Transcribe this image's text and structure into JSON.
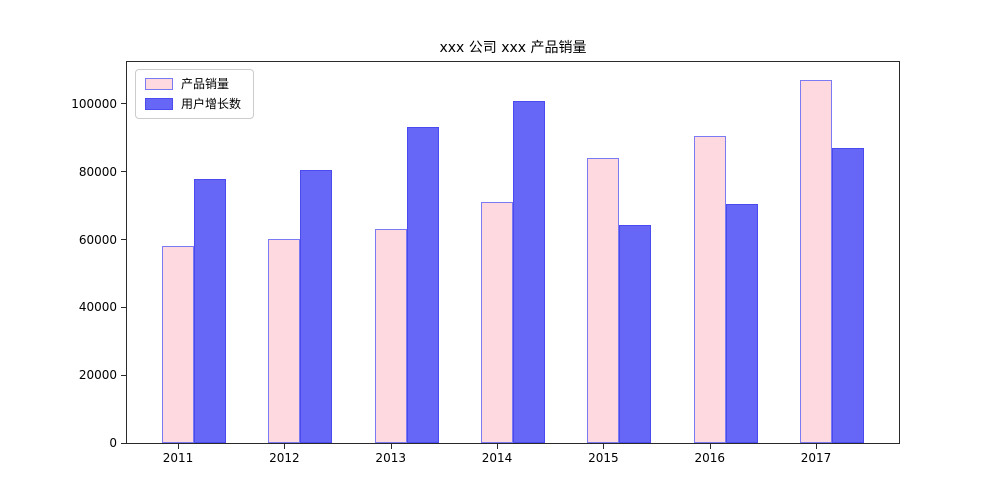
{
  "title": "xxx 公司 xxx 产品销量",
  "colors": {
    "series1_fill": "#ffd9e0",
    "series1_edge": "#7a7af2",
    "series2_fill": "#6666f7",
    "series2_edge": "#4a4aee",
    "spine": "#2a2a2a"
  },
  "legend": {
    "items": [
      "产品销量",
      "用户增长数"
    ]
  },
  "chart_data": {
    "type": "bar",
    "title": "xxx 公司 xxx 产品销量",
    "categories": [
      "2011",
      "2012",
      "2013",
      "2014",
      "2015",
      "2016",
      "2017"
    ],
    "series": [
      {
        "name": "产品销量",
        "values": [
          58000,
          60200,
          63000,
          71000,
          84000,
          90500,
          107000
        ],
        "fill": "#ffd9e0",
        "edge": "#7a7af2"
      },
      {
        "name": "用户增长数",
        "values": [
          78000,
          80480,
          93105,
          101000,
          64200,
          70500,
          87000
        ],
        "fill": "#6666f7",
        "edge": "#4a4aee"
      }
    ],
    "xlabel": "",
    "ylabel": "",
    "ylim": [
      0,
      112350
    ],
    "xlim": [
      -0.48,
      6.78
    ],
    "yticks": [
      0,
      20000,
      40000,
      60000,
      80000,
      100000
    ],
    "bar_width_frac": 0.3,
    "grid": false,
    "legend_position": "upper left"
  }
}
